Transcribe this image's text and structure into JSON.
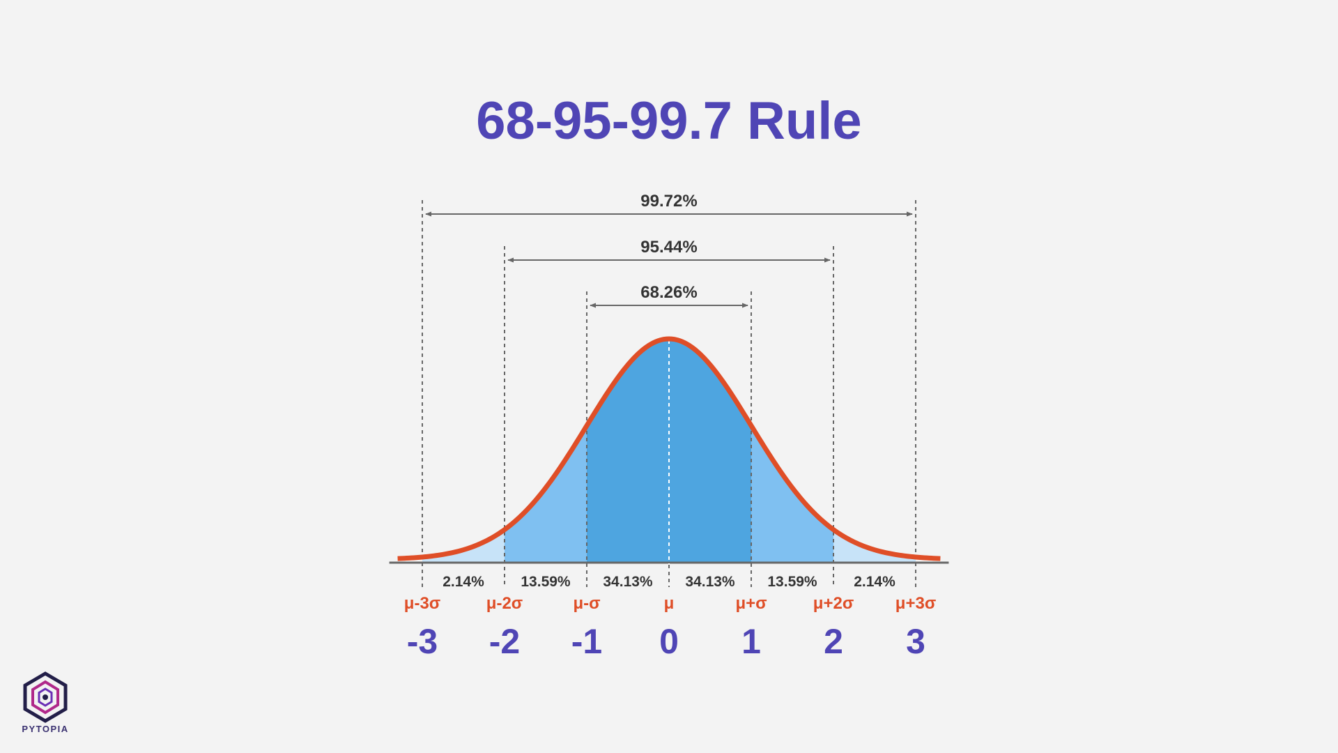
{
  "chart_data": {
    "type": "area",
    "title": "68-95-99.7 Rule",
    "distribution": "normal",
    "mean": 0,
    "sd": 1,
    "x_ticks": [
      -3,
      -2,
      -1,
      0,
      1,
      2,
      3
    ],
    "x_tick_labels": [
      "-3",
      "-2",
      "-1",
      "0",
      "1",
      "2",
      "3"
    ],
    "sigma_labels": [
      "μ-3σ",
      "μ-2σ",
      "μ-σ",
      "μ",
      "μ+σ",
      "μ+2σ",
      "μ+3σ"
    ],
    "segments": [
      {
        "from": -3,
        "to": -2,
        "percent_label": "2.14%"
      },
      {
        "from": -2,
        "to": -1,
        "percent_label": "13.59%"
      },
      {
        "from": -1,
        "to": 0,
        "percent_label": "34.13%"
      },
      {
        "from": 0,
        "to": 1,
        "percent_label": "34.13%"
      },
      {
        "from": 1,
        "to": 2,
        "percent_label": "13.59%"
      },
      {
        "from": 2,
        "to": 3,
        "percent_label": "2.14%"
      }
    ],
    "ranges": [
      {
        "from": -1,
        "to": 1,
        "label": "68.26%"
      },
      {
        "from": -2,
        "to": 2,
        "label": "95.44%"
      },
      {
        "from": -3,
        "to": 3,
        "label": "99.72%"
      }
    ],
    "x_range": [
      -3.3,
      3.3
    ],
    "colors": {
      "curve": "#df4e27",
      "fill_inner": "#4ea5e0",
      "fill_middle": "#7fc0f1",
      "fill_outer": "#c7e3f8",
      "title": "#4f45b5",
      "sigma_label": "#df4e27",
      "tick_label": "#4f45b5",
      "text": "#333333",
      "guide": "#666666"
    }
  },
  "logo": {
    "text": "PYTOPIA",
    "icon": "hexagon-logo-icon"
  }
}
